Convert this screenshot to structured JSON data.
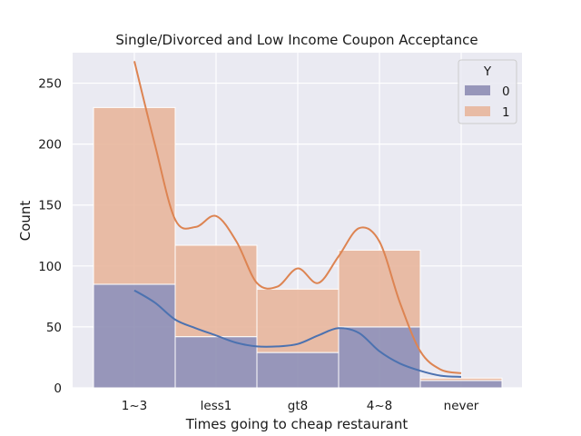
{
  "chart_data": {
    "type": "bar",
    "stacked": true,
    "title": "Single/Divorced and Low Income Coupon Acceptance",
    "xlabel": "Times going to cheap restaurant",
    "ylabel": "Count",
    "categories": [
      "1~3",
      "less1",
      "gt8",
      "4~8",
      "never"
    ],
    "ylim": [
      0,
      275
    ],
    "yticks": [
      0,
      50,
      100,
      150,
      200,
      250
    ],
    "grid": true,
    "legend": {
      "title": "Y",
      "placement": "top-right"
    },
    "series": [
      {
        "name": "0",
        "color": "#8e8db4",
        "line_color": "#4c72b0",
        "values": [
          85,
          42,
          29,
          50,
          6
        ]
      },
      {
        "name": "1",
        "color": "#e8b69c",
        "line_color": "#dd8452",
        "values": [
          145,
          75,
          52,
          63,
          2
        ]
      }
    ],
    "kde": {
      "x": [
        0.0,
        0.25,
        0.5,
        0.75,
        1.0,
        1.25,
        1.5,
        1.75,
        2.0,
        2.25,
        2.5,
        2.75,
        3.0,
        3.25,
        3.5,
        3.75,
        4.0
      ],
      "series_0": [
        80,
        70,
        56,
        49,
        43,
        37,
        34,
        34,
        36,
        43,
        49,
        45,
        30,
        20,
        14,
        10,
        9
      ],
      "series_1": [
        268,
        200,
        138,
        132,
        141,
        120,
        86,
        83,
        98,
        86,
        108,
        131,
        120,
        70,
        30,
        15,
        12
      ]
    },
    "background_color": "#eaeaf2"
  }
}
